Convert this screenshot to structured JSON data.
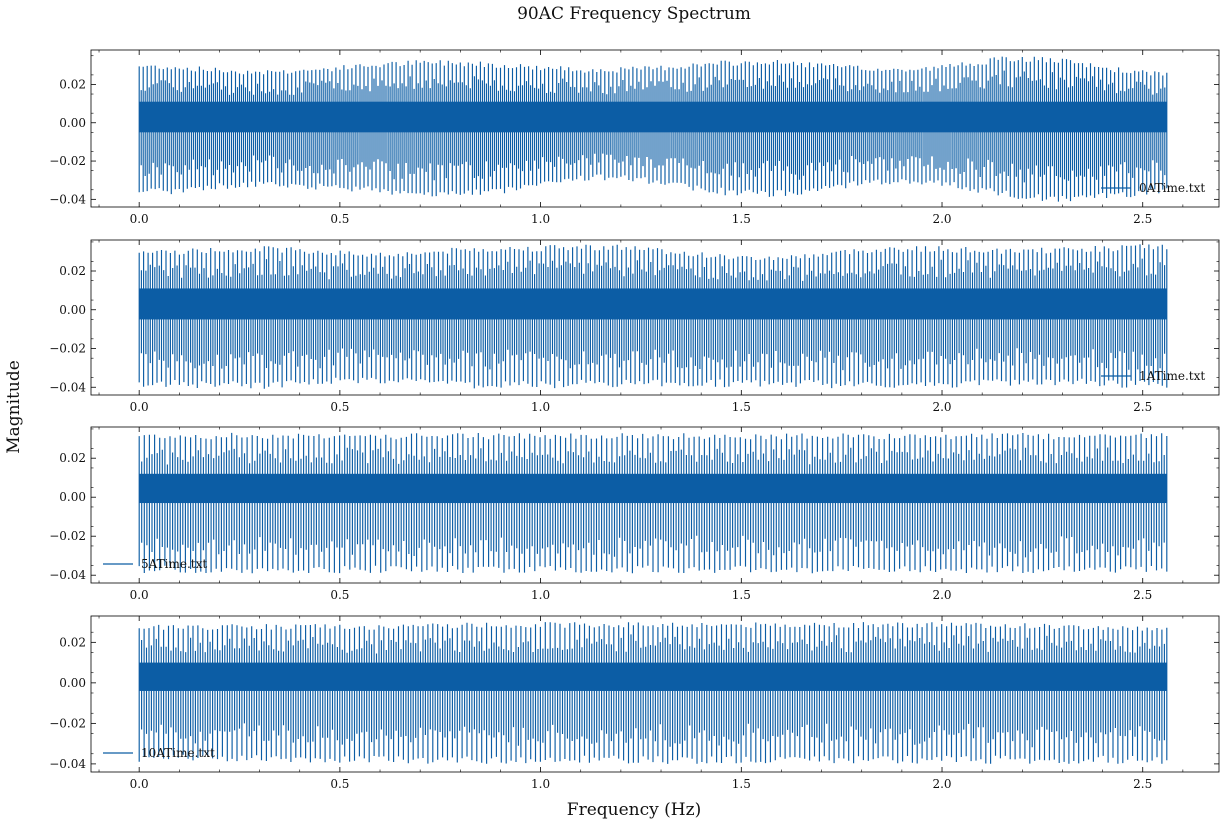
{
  "figure": {
    "title": "90AC Frequency Spectrum",
    "xlabel": "Frequency (Hz)",
    "ylabel": "Magnitude",
    "line_color": "#0C5DA5"
  },
  "chart_data": [
    {
      "type": "line",
      "series": [
        {
          "name": "0ATime.txt"
        }
      ],
      "legend_position": "lower right",
      "xlim": [
        -0.12,
        2.69
      ],
      "ylim": [
        -0.044,
        0.038
      ],
      "xticks": [
        0.0,
        0.5,
        1.0,
        1.5,
        2.0,
        2.5
      ],
      "xtick_labels": [
        "0.0",
        "0.5",
        "1.0",
        "1.5",
        "2.0",
        "2.5"
      ],
      "yticks": [
        -0.04,
        -0.02,
        0.0,
        0.02
      ],
      "ytick_labels": [
        "−0.04",
        "−0.02",
        "0.00",
        "0.02"
      ],
      "x_range": [
        0.0,
        2.56
      ],
      "oscillations": 256,
      "envelope_upper": [
        [
          0.0,
          0.031
        ],
        [
          0.3,
          0.028
        ],
        [
          0.75,
          0.033
        ],
        [
          1.15,
          0.029
        ],
        [
          1.55,
          0.033
        ],
        [
          1.9,
          0.029
        ],
        [
          2.2,
          0.035
        ],
        [
          2.56,
          0.027
        ]
      ],
      "envelope_lower": [
        [
          0.0,
          -0.038
        ],
        [
          0.3,
          -0.034
        ],
        [
          0.8,
          -0.039
        ],
        [
          1.15,
          -0.03
        ],
        [
          1.55,
          -0.039
        ],
        [
          1.9,
          -0.032
        ],
        [
          2.3,
          -0.042
        ],
        [
          2.56,
          -0.038
        ]
      ],
      "band": [
        -0.005,
        0.011
      ],
      "grid": false
    },
    {
      "type": "line",
      "series": [
        {
          "name": "1ATime.txt"
        }
      ],
      "legend_position": "lower right",
      "xlim": [
        -0.12,
        2.69
      ],
      "ylim": [
        -0.044,
        0.036
      ],
      "xticks": [
        0.0,
        0.5,
        1.0,
        1.5,
        2.0,
        2.5
      ],
      "xtick_labels": [
        "0.0",
        "0.5",
        "1.0",
        "1.5",
        "2.0",
        "2.5"
      ],
      "yticks": [
        -0.04,
        -0.02,
        0.0,
        0.02
      ],
      "ytick_labels": [
        "−0.04",
        "−0.02",
        "0.00",
        "0.02"
      ],
      "x_range": [
        0.0,
        2.56
      ],
      "oscillations": 230,
      "envelope_upper": [
        [
          0.0,
          0.031
        ],
        [
          0.3,
          0.033
        ],
        [
          0.6,
          0.03
        ],
        [
          0.9,
          0.033
        ],
        [
          1.15,
          0.034
        ],
        [
          1.55,
          0.028
        ],
        [
          1.9,
          0.033
        ],
        [
          2.2,
          0.032
        ],
        [
          2.56,
          0.034
        ]
      ],
      "envelope_lower": [
        [
          0.0,
          -0.04
        ],
        [
          0.3,
          -0.041
        ],
        [
          0.6,
          -0.038
        ],
        [
          0.9,
          -0.041
        ],
        [
          1.2,
          -0.04
        ],
        [
          1.55,
          -0.04
        ],
        [
          1.9,
          -0.041
        ],
        [
          2.3,
          -0.039
        ],
        [
          2.56,
          -0.041
        ]
      ],
      "band": [
        -0.005,
        0.011
      ],
      "grid": false
    },
    {
      "type": "line",
      "series": [
        {
          "name": "5ATime.txt"
        }
      ],
      "legend_position": "lower left",
      "xlim": [
        -0.12,
        2.69
      ],
      "ylim": [
        -0.044,
        0.036
      ],
      "xticks": [
        0.0,
        0.5,
        1.0,
        1.5,
        2.0,
        2.5
      ],
      "xtick_labels": [
        "0.0",
        "0.5",
        "1.0",
        "1.5",
        "2.0",
        "2.5"
      ],
      "yticks": [
        -0.04,
        -0.02,
        0.0,
        0.02
      ],
      "ytick_labels": [
        "−0.04",
        "−0.02",
        "0.00",
        "0.02"
      ],
      "x_range": [
        0.0,
        2.56
      ],
      "oscillations": 200,
      "envelope_upper": [
        [
          0.0,
          0.033
        ],
        [
          0.5,
          0.033
        ],
        [
          1.0,
          0.033
        ],
        [
          1.5,
          0.033
        ],
        [
          2.0,
          0.033
        ],
        [
          2.56,
          0.033
        ]
      ],
      "envelope_lower": [
        [
          0.0,
          -0.039
        ],
        [
          0.5,
          -0.039
        ],
        [
          1.0,
          -0.039
        ],
        [
          1.5,
          -0.039
        ],
        [
          2.0,
          -0.039
        ],
        [
          2.56,
          -0.039
        ]
      ],
      "band": [
        -0.003,
        0.012
      ],
      "grid": false
    },
    {
      "type": "line",
      "series": [
        {
          "name": "10ATime.txt"
        }
      ],
      "legend_position": "lower left",
      "xlim": [
        -0.12,
        2.69
      ],
      "ylim": [
        -0.044,
        0.033
      ],
      "xticks": [
        0.0,
        0.5,
        1.0,
        1.5,
        2.0,
        2.5
      ],
      "xtick_labels": [
        "0.0",
        "0.5",
        "1.0",
        "1.5",
        "2.0",
        "2.5"
      ],
      "yticks": [
        -0.04,
        -0.02,
        0.0,
        0.02
      ],
      "ytick_labels": [
        "−0.04",
        "−0.02",
        "0.00",
        "0.02"
      ],
      "x_range": [
        0.0,
        2.56
      ],
      "oscillations": 210,
      "envelope_upper": [
        [
          0.0,
          0.029
        ],
        [
          0.5,
          0.029
        ],
        [
          1.0,
          0.03
        ],
        [
          1.5,
          0.03
        ],
        [
          2.0,
          0.03
        ],
        [
          2.56,
          0.028
        ]
      ],
      "envelope_lower": [
        [
          0.0,
          -0.039
        ],
        [
          0.5,
          -0.04
        ],
        [
          1.0,
          -0.04
        ],
        [
          1.5,
          -0.04
        ],
        [
          2.0,
          -0.04
        ],
        [
          2.56,
          -0.04
        ]
      ],
      "band": [
        -0.004,
        0.01
      ],
      "grid": false
    }
  ]
}
